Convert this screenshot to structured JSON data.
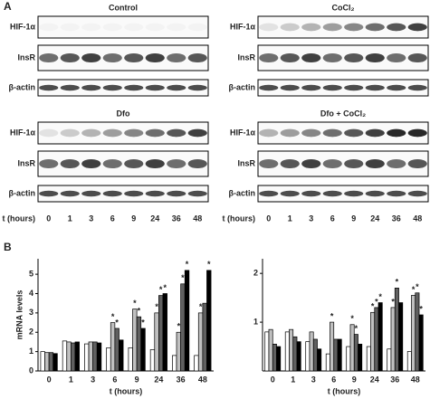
{
  "blots": {
    "label": "A",
    "time_label": "t (hours)",
    "times": [
      "0",
      "1",
      "3",
      "6",
      "9",
      "24",
      "36",
      "48"
    ],
    "panels": [
      {
        "title": "Control",
        "rows": [
          "HIF-1α",
          "InsR",
          "β-actin"
        ]
      },
      {
        "title": "CoCl₂",
        "rows": [
          "HIF-1α",
          "InsR",
          "β-actin"
        ]
      },
      {
        "title": "Dfo",
        "rows": [
          "HIF-1α",
          "InsR",
          "β-actin"
        ]
      },
      {
        "title": "Dfo + CoCl₂",
        "rows": [
          "HIF-1α",
          "InsR",
          "β-actin"
        ]
      }
    ]
  },
  "panel_b_label": "B",
  "chart_data": [
    {
      "type": "bar",
      "ylabel": "mRNA levels",
      "xlabel": "t (hours)",
      "marker": "*",
      "categories": [
        "0",
        "1",
        "3",
        "6",
        "9",
        "24",
        "36",
        "48"
      ],
      "ylim": [
        0,
        5.8
      ],
      "yticks": [
        0,
        1,
        2,
        3,
        4,
        5
      ],
      "series": [
        {
          "color": "#ffffff",
          "values": [
            1.0,
            1.55,
            1.4,
            1.2,
            1.2,
            1.1,
            0.8,
            0.8
          ],
          "significant": [
            0,
            0,
            0,
            0,
            0,
            0,
            0,
            0
          ]
        },
        {
          "color": "#c0c0c0",
          "values": [
            0.95,
            1.5,
            1.5,
            2.5,
            3.2,
            3.0,
            2.0,
            3.0
          ],
          "significant": [
            0,
            0,
            0,
            1,
            1,
            1,
            1,
            1
          ]
        },
        {
          "color": "#606060",
          "values": [
            0.95,
            1.45,
            1.5,
            2.2,
            2.8,
            3.9,
            4.5,
            3.5
          ],
          "significant": [
            0,
            0,
            0,
            1,
            1,
            1,
            1,
            0
          ]
        },
        {
          "color": "#000000",
          "values": [
            0.9,
            1.5,
            1.45,
            1.6,
            2.2,
            4.0,
            5.2,
            5.2
          ],
          "significant": [
            0,
            0,
            0,
            0,
            1,
            1,
            1,
            1
          ]
        }
      ]
    },
    {
      "type": "bar",
      "xlabel": "t (hours)",
      "marker": "*",
      "categories": [
        "0",
        "1",
        "3",
        "6",
        "9",
        "24",
        "36",
        "48"
      ],
      "ylim": [
        0,
        2.3
      ],
      "yticks": [
        1,
        2
      ],
      "series": [
        {
          "color": "#ffffff",
          "values": [
            0.8,
            0.8,
            0.6,
            0.35,
            0.5,
            0.5,
            0.45,
            0.4
          ],
          "significant": [
            0,
            0,
            0,
            0,
            0,
            0,
            0,
            0
          ]
        },
        {
          "color": "#c0c0c0",
          "values": [
            0.85,
            0.85,
            0.8,
            1.0,
            0.95,
            1.2,
            1.3,
            1.55
          ],
          "significant": [
            0,
            0,
            0,
            1,
            1,
            1,
            1,
            1
          ]
        },
        {
          "color": "#606060",
          "values": [
            0.55,
            0.7,
            0.65,
            0.65,
            0.75,
            1.3,
            1.7,
            1.6
          ],
          "significant": [
            0,
            0,
            0,
            0,
            1,
            1,
            1,
            1
          ]
        },
        {
          "color": "#000000",
          "values": [
            0.5,
            0.6,
            0.45,
            0.65,
            0.55,
            1.4,
            1.4,
            1.15
          ],
          "significant": [
            0,
            0,
            0,
            0,
            0,
            1,
            0,
            1
          ]
        }
      ]
    }
  ]
}
